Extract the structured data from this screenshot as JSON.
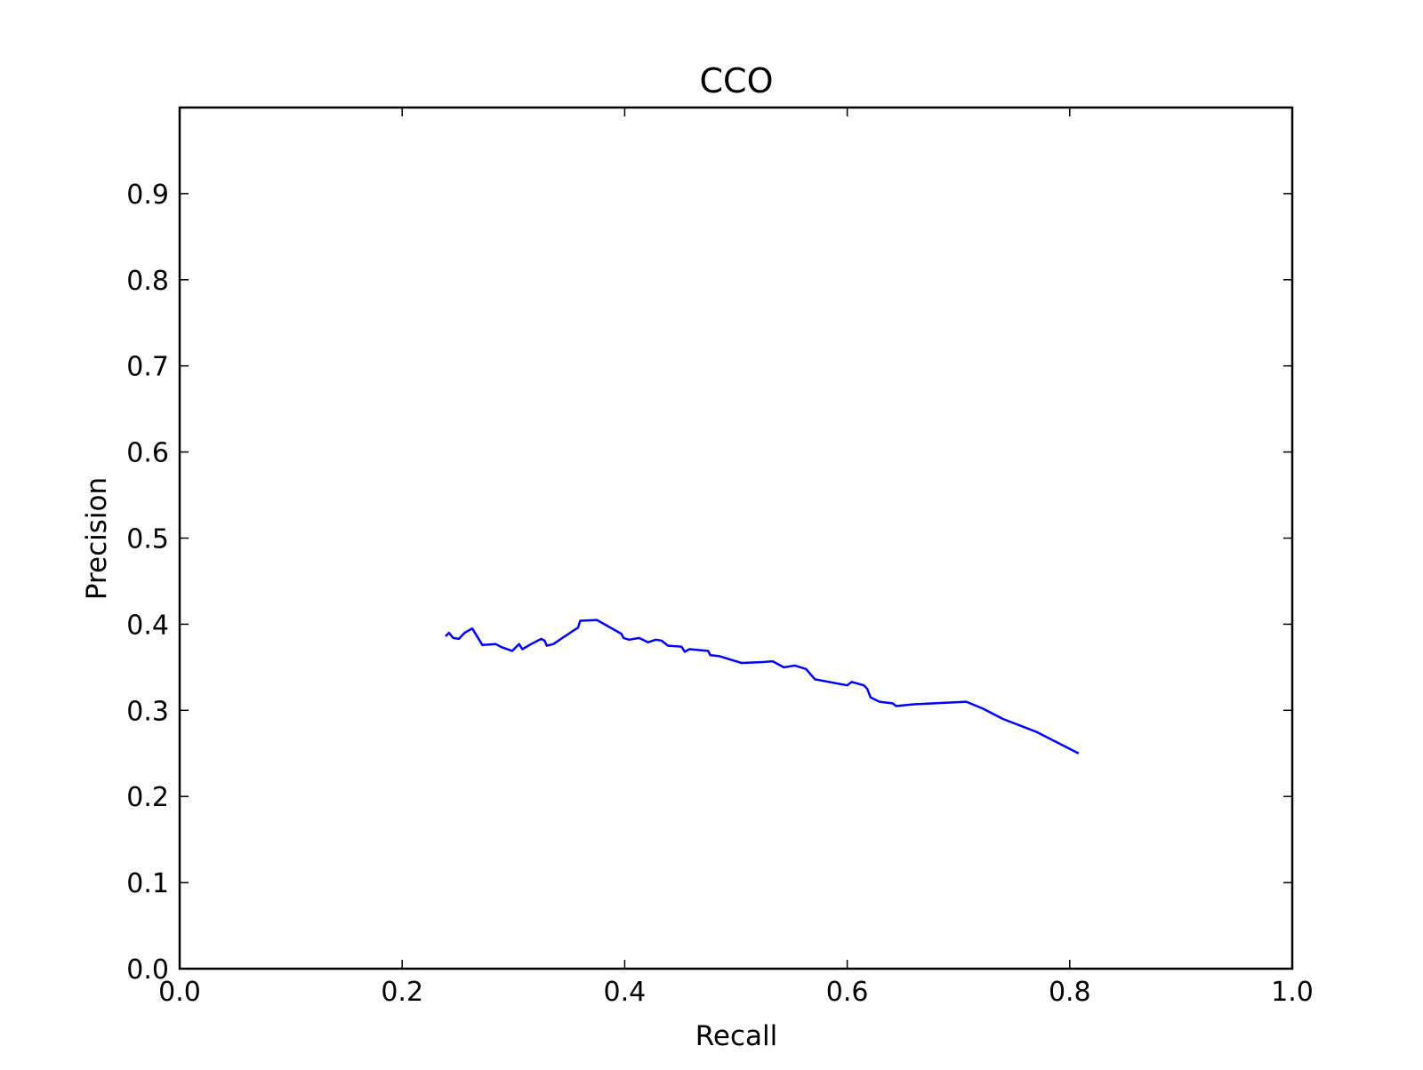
{
  "chart_data": {
    "type": "line",
    "title": "CCO",
    "xlabel": "Recall",
    "ylabel": "Precision",
    "xlim": [
      0.0,
      1.0
    ],
    "ylim": [
      0.0,
      1.0
    ],
    "xticks": [
      "0.0",
      "0.2",
      "0.4",
      "0.6",
      "0.8",
      "1.0"
    ],
    "yticks": [
      "0.0",
      "0.1",
      "0.2",
      "0.3",
      "0.4",
      "0.5",
      "0.6",
      "0.7",
      "0.8",
      "0.9"
    ],
    "grid": false,
    "series": [
      {
        "color": "#0000ff",
        "x": [
          0.239,
          0.242,
          0.246,
          0.251,
          0.256,
          0.263,
          0.272,
          0.284,
          0.29,
          0.299,
          0.305,
          0.308,
          0.316,
          0.325,
          0.328,
          0.33,
          0.336,
          0.344,
          0.352,
          0.358,
          0.36,
          0.375,
          0.397,
          0.399,
          0.404,
          0.413,
          0.421,
          0.428,
          0.433,
          0.439,
          0.451,
          0.454,
          0.458,
          0.475,
          0.477,
          0.485,
          0.505,
          0.524,
          0.533,
          0.543,
          0.553,
          0.563,
          0.571,
          0.6,
          0.604,
          0.615,
          0.618,
          0.621,
          0.629,
          0.641,
          0.644,
          0.66,
          0.707,
          0.722,
          0.74,
          0.77,
          0.808
        ],
        "y": [
          0.386,
          0.39,
          0.384,
          0.383,
          0.39,
          0.395,
          0.376,
          0.377,
          0.373,
          0.369,
          0.377,
          0.371,
          0.377,
          0.383,
          0.381,
          0.375,
          0.377,
          0.384,
          0.391,
          0.396,
          0.404,
          0.405,
          0.389,
          0.384,
          0.382,
          0.384,
          0.379,
          0.382,
          0.381,
          0.375,
          0.374,
          0.368,
          0.371,
          0.369,
          0.364,
          0.363,
          0.355,
          0.356,
          0.357,
          0.35,
          0.352,
          0.348,
          0.336,
          0.329,
          0.333,
          0.329,
          0.325,
          0.315,
          0.31,
          0.308,
          0.305,
          0.307,
          0.31,
          0.302,
          0.29,
          0.275,
          0.25
        ]
      }
    ]
  }
}
